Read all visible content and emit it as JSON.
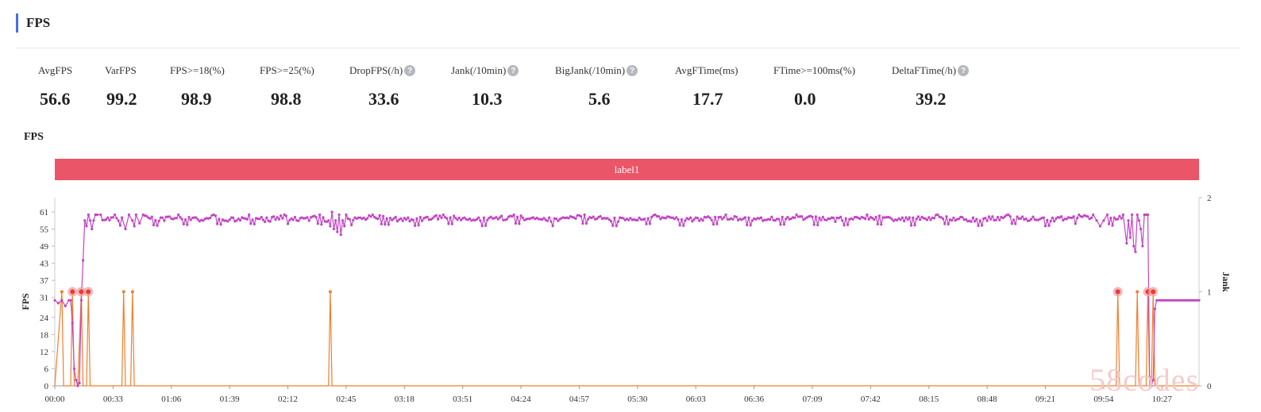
{
  "section": {
    "title": "FPS"
  },
  "metrics": [
    {
      "label": "AvgFPS",
      "value": "56.6",
      "help": false
    },
    {
      "label": "VarFPS",
      "value": "99.2",
      "help": false
    },
    {
      "label": "FPS>=18(%)",
      "value": "98.9",
      "help": false
    },
    {
      "label": "FPS>=25(%)",
      "value": "98.8",
      "help": false
    },
    {
      "label": "DropFPS(/h)",
      "value": "33.6",
      "help": true
    },
    {
      "label": "Jank(/10min)",
      "value": "10.3",
      "help": true
    },
    {
      "label": "BigJank(/10min)",
      "value": "5.6",
      "help": true
    },
    {
      "label": "AvgFTime(ms)",
      "value": "17.7",
      "help": false
    },
    {
      "label": "FTime>=100ms(%)",
      "value": "0.0",
      "help": false
    },
    {
      "label": "DeltaFTime(/h)",
      "value": "39.2",
      "help": true
    }
  ],
  "watermark": "58codes",
  "chart_data": {
    "type": "line",
    "title": "FPS",
    "band_label": "label1",
    "ylabel": "FPS",
    "y2label": "Jank",
    "ylim": [
      0,
      66
    ],
    "y2lim": [
      0,
      2
    ],
    "yticks": [
      "0",
      "6",
      "12",
      "18",
      "24",
      "31",
      "37",
      "43",
      "49",
      "55",
      "61"
    ],
    "y2ticks": [
      "0",
      "1",
      "2"
    ],
    "xlim_seconds": [
      0,
      648
    ],
    "xticks": [
      "00:00",
      "00:33",
      "01:06",
      "01:39",
      "02:12",
      "02:45",
      "03:18",
      "03:51",
      "04:24",
      "04:57",
      "05:30",
      "06:03",
      "06:36",
      "07:09",
      "07:42",
      "08:15",
      "08:48",
      "09:21",
      "09:54",
      "10:27"
    ],
    "colors": {
      "fps": "#c246c4",
      "jank": "#f07f2f",
      "bigjank_marker": "#e83b3b",
      "band": "#ea5568"
    },
    "series": [
      {
        "name": "FPS",
        "axis": "left",
        "points": [
          [
            0,
            30
          ],
          [
            2,
            29
          ],
          [
            4,
            30
          ],
          [
            6,
            28
          ],
          [
            8,
            30
          ],
          [
            9,
            30
          ],
          [
            10,
            22
          ],
          [
            11,
            6
          ],
          [
            12,
            2
          ],
          [
            13,
            0
          ],
          [
            14,
            1
          ],
          [
            15,
            30
          ],
          [
            16,
            44
          ],
          [
            17,
            58
          ],
          [
            18,
            56
          ],
          [
            19,
            60
          ],
          [
            20,
            58
          ],
          [
            21,
            55
          ],
          [
            22,
            58
          ],
          [
            23,
            60
          ],
          [
            24,
            60
          ],
          [
            26,
            60
          ],
          [
            30,
            59
          ],
          [
            34,
            60
          ],
          [
            38,
            59
          ],
          [
            40,
            55
          ],
          [
            42,
            60
          ],
          [
            44,
            58
          ],
          [
            45,
            56
          ],
          [
            46,
            60
          ],
          [
            48,
            57
          ],
          [
            50,
            60
          ],
          [
            60,
            59
          ],
          [
            70,
            60
          ],
          [
            80,
            59
          ],
          [
            90,
            60
          ],
          [
            100,
            59
          ],
          [
            110,
            60
          ],
          [
            120,
            59
          ],
          [
            130,
            60
          ],
          [
            140,
            59
          ],
          [
            150,
            60
          ],
          [
            155,
            58
          ],
          [
            156,
            56
          ],
          [
            157,
            61
          ],
          [
            158,
            55
          ],
          [
            159,
            58
          ],
          [
            160,
            54
          ],
          [
            161,
            60
          ],
          [
            162,
            53
          ],
          [
            163,
            58
          ],
          [
            164,
            56
          ],
          [
            165,
            60
          ],
          [
            170,
            59
          ],
          [
            180,
            60
          ],
          [
            200,
            59
          ],
          [
            220,
            60
          ],
          [
            240,
            59
          ],
          [
            260,
            60
          ],
          [
            280,
            59
          ],
          [
            300,
            60
          ],
          [
            320,
            59
          ],
          [
            340,
            60
          ],
          [
            360,
            59
          ],
          [
            380,
            60
          ],
          [
            400,
            59
          ],
          [
            420,
            60
          ],
          [
            440,
            59
          ],
          [
            460,
            60
          ],
          [
            480,
            59
          ],
          [
            500,
            60
          ],
          [
            520,
            59
          ],
          [
            540,
            60
          ],
          [
            560,
            59
          ],
          [
            580,
            60
          ],
          [
            588,
            60
          ],
          [
            590,
            58
          ],
          [
            592,
            56
          ],
          [
            594,
            58
          ],
          [
            596,
            60
          ],
          [
            600,
            59
          ],
          [
            605,
            60
          ],
          [
            607,
            50
          ],
          [
            608,
            58
          ],
          [
            609,
            52
          ],
          [
            610,
            60
          ],
          [
            611,
            49
          ],
          [
            612,
            47
          ],
          [
            613,
            60
          ],
          [
            614,
            58
          ],
          [
            615,
            55
          ],
          [
            616,
            49
          ],
          [
            617,
            60
          ],
          [
            618,
            60
          ],
          [
            619,
            60
          ],
          [
            620,
            3
          ],
          [
            621,
            0
          ],
          [
            622,
            2
          ],
          [
            623,
            27
          ],
          [
            624,
            30
          ],
          [
            630,
            30
          ],
          [
            640,
            30
          ],
          [
            648,
            30
          ]
        ]
      },
      {
        "name": "Jank",
        "axis": "right",
        "points": [
          [
            0,
            0
          ],
          [
            4,
            1
          ],
          [
            5,
            0
          ],
          [
            9,
            0
          ],
          [
            10,
            1
          ],
          [
            11,
            0
          ],
          [
            13,
            0
          ],
          [
            15,
            1
          ],
          [
            16,
            0
          ],
          [
            18,
            0
          ],
          [
            19,
            1
          ],
          [
            20,
            0
          ],
          [
            38,
            0
          ],
          [
            39,
            1
          ],
          [
            40,
            0
          ],
          [
            43,
            0
          ],
          [
            44,
            1
          ],
          [
            45,
            0
          ],
          [
            155,
            0
          ],
          [
            156,
            1
          ],
          [
            157,
            0
          ],
          [
            601,
            0
          ],
          [
            602,
            1
          ],
          [
            603,
            0
          ],
          [
            612,
            0
          ],
          [
            613,
            1
          ],
          [
            614,
            0
          ],
          [
            618,
            0
          ],
          [
            619,
            1
          ],
          [
            620,
            0
          ],
          [
            621,
            0
          ],
          [
            622,
            1
          ],
          [
            623,
            0
          ],
          [
            648,
            0
          ]
        ]
      }
    ],
    "bigjank_markers": [
      [
        10,
        1
      ],
      [
        15,
        1
      ],
      [
        19,
        1
      ],
      [
        602,
        1
      ],
      [
        619,
        1
      ],
      [
        622,
        1
      ]
    ]
  }
}
